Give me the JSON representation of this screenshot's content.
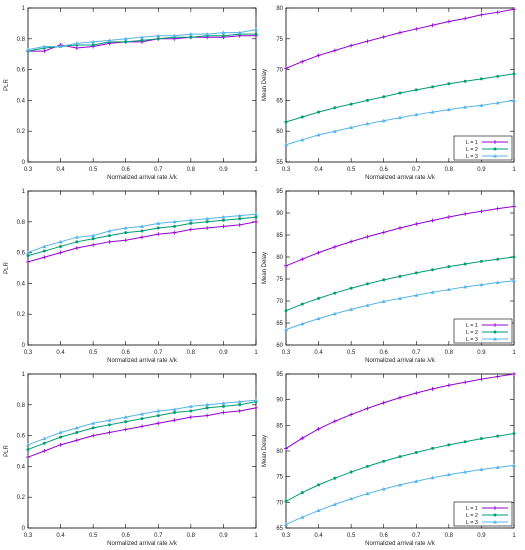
{
  "colors": {
    "series1": "#9400d3",
    "series2": "#009e73",
    "series3": "#56b4e9",
    "frame": "#000000",
    "grid": "#cccccc"
  },
  "chart_data": [
    {
      "type": "line",
      "id": "top-left-plr",
      "xlabel": "Normalized arrival rate λ/k",
      "ylabel": "PLR",
      "xlim": [
        0.3,
        1.0
      ],
      "ylim": [
        0,
        1.0
      ],
      "xticks": [
        "0.3",
        "0.4",
        "0.5",
        "0.6",
        "0.7",
        "0.8",
        "0.9",
        "1"
      ],
      "yticks": [
        "0",
        "0.2",
        "0.4",
        "0.6",
        "0.8",
        "1"
      ],
      "x": [
        0.3,
        0.35,
        0.4,
        0.45,
        0.5,
        0.55,
        0.6,
        0.65,
        0.7,
        0.75,
        0.8,
        0.85,
        0.9,
        0.95,
        1.0
      ],
      "series": [
        {
          "name": "L = 1",
          "values": [
            0.72,
            0.72,
            0.76,
            0.74,
            0.75,
            0.77,
            0.78,
            0.78,
            0.8,
            0.8,
            0.81,
            0.81,
            0.81,
            0.82,
            0.82
          ]
        },
        {
          "name": "L = 2",
          "values": [
            0.72,
            0.74,
            0.75,
            0.76,
            0.76,
            0.78,
            0.78,
            0.79,
            0.8,
            0.81,
            0.81,
            0.82,
            0.82,
            0.83,
            0.83
          ]
        },
        {
          "name": "L = 3",
          "values": [
            0.73,
            0.75,
            0.75,
            0.77,
            0.78,
            0.79,
            0.8,
            0.81,
            0.82,
            0.82,
            0.83,
            0.83,
            0.84,
            0.84,
            0.86
          ]
        }
      ]
    },
    {
      "type": "line",
      "id": "top-right-delay",
      "xlabel": "Normalized arrival rate λ/k",
      "ylabel": "Mean Delay",
      "xlim": [
        0.3,
        1.0
      ],
      "ylim": [
        55,
        80
      ],
      "xticks": [
        "0.3",
        "0.4",
        "0.5",
        "0.6",
        "0.7",
        "0.8",
        "0.9",
        "1"
      ],
      "yticks": [
        "55",
        "60",
        "65",
        "70",
        "75",
        "80"
      ],
      "legend": "bottom-right",
      "legend_labels": [
        "L = 1",
        "L = 2",
        "L = 3"
      ],
      "x": [
        0.3,
        0.35,
        0.4,
        0.45,
        0.5,
        0.55,
        0.6,
        0.65,
        0.7,
        0.75,
        0.8,
        0.85,
        0.9,
        0.95,
        1.0
      ],
      "series": [
        {
          "name": "L = 1",
          "values": [
            70.2,
            71.3,
            72.3,
            73.1,
            73.9,
            74.6,
            75.3,
            76.0,
            76.6,
            77.2,
            77.8,
            78.3,
            78.9,
            79.3,
            79.8
          ]
        },
        {
          "name": "L = 2",
          "values": [
            61.5,
            62.3,
            63.1,
            63.8,
            64.4,
            65.0,
            65.6,
            66.2,
            66.7,
            67.2,
            67.7,
            68.1,
            68.5,
            68.9,
            69.3
          ]
        },
        {
          "name": "L = 3",
          "values": [
            57.8,
            58.6,
            59.4,
            60.0,
            60.6,
            61.2,
            61.7,
            62.2,
            62.7,
            63.1,
            63.5,
            63.9,
            64.2,
            64.6,
            65.0
          ]
        }
      ]
    },
    {
      "type": "line",
      "id": "mid-left-plr",
      "xlabel": "Normalized arrival rate λ/k",
      "ylabel": "PLR",
      "xlim": [
        0.3,
        1.0
      ],
      "ylim": [
        0,
        1.0
      ],
      "xticks": [
        "0.3",
        "0.4",
        "0.5",
        "0.6",
        "0.7",
        "0.8",
        "0.9",
        "1"
      ],
      "yticks": [
        "0",
        "0.2",
        "0.4",
        "0.6",
        "0.8",
        "1"
      ],
      "x": [
        0.3,
        0.35,
        0.4,
        0.45,
        0.5,
        0.55,
        0.6,
        0.65,
        0.7,
        0.75,
        0.8,
        0.85,
        0.9,
        0.95,
        1.0
      ],
      "series": [
        {
          "name": "L = 1",
          "values": [
            0.54,
            0.57,
            0.6,
            0.63,
            0.65,
            0.67,
            0.68,
            0.7,
            0.72,
            0.73,
            0.75,
            0.76,
            0.77,
            0.78,
            0.8
          ]
        },
        {
          "name": "L = 2",
          "values": [
            0.58,
            0.61,
            0.64,
            0.67,
            0.69,
            0.71,
            0.73,
            0.74,
            0.76,
            0.77,
            0.79,
            0.8,
            0.81,
            0.82,
            0.83
          ]
        },
        {
          "name": "L = 3",
          "values": [
            0.6,
            0.64,
            0.67,
            0.7,
            0.71,
            0.74,
            0.76,
            0.77,
            0.79,
            0.8,
            0.81,
            0.82,
            0.83,
            0.84,
            0.85
          ]
        }
      ]
    },
    {
      "type": "line",
      "id": "mid-right-delay",
      "xlabel": "Normalized arrival rate λ/k",
      "ylabel": "Mean Delay",
      "xlim": [
        0.3,
        1.0
      ],
      "ylim": [
        60,
        95
      ],
      "xticks": [
        "0.3",
        "0.4",
        "0.5",
        "0.6",
        "0.7",
        "0.8",
        "0.9",
        "1"
      ],
      "yticks": [
        "60",
        "65",
        "70",
        "75",
        "80",
        "85",
        "90",
        "95"
      ],
      "legend": "bottom-right",
      "legend_labels": [
        "L = 1",
        "L = 2",
        "L = 3"
      ],
      "x": [
        0.3,
        0.35,
        0.4,
        0.45,
        0.5,
        0.55,
        0.6,
        0.65,
        0.7,
        0.75,
        0.8,
        0.85,
        0.9,
        0.95,
        1.0
      ],
      "series": [
        {
          "name": "L = 1",
          "values": [
            78.0,
            79.5,
            81.0,
            82.3,
            83.5,
            84.6,
            85.6,
            86.6,
            87.5,
            88.3,
            89.1,
            89.8,
            90.4,
            91.0,
            91.5
          ]
        },
        {
          "name": "L = 2",
          "values": [
            67.8,
            69.3,
            70.6,
            71.8,
            72.9,
            73.9,
            74.8,
            75.6,
            76.4,
            77.1,
            77.8,
            78.4,
            79.0,
            79.5,
            80.0
          ]
        },
        {
          "name": "L = 3",
          "values": [
            63.5,
            64.8,
            66.0,
            67.1,
            68.1,
            69.0,
            69.9,
            70.6,
            71.3,
            72.0,
            72.6,
            73.2,
            73.7,
            74.2,
            74.6
          ]
        }
      ]
    },
    {
      "type": "line",
      "id": "bottom-left-plr",
      "xlabel": "Normalized arrival rate λ/k",
      "ylabel": "PLR",
      "xlim": [
        0.3,
        1.0
      ],
      "ylim": [
        0,
        1.0
      ],
      "xticks": [
        "0.3",
        "0.4",
        "0.5",
        "0.6",
        "0.7",
        "0.8",
        "0.9",
        "1"
      ],
      "yticks": [
        "0",
        "0.2",
        "0.4",
        "0.6",
        "0.8",
        "1"
      ],
      "x": [
        0.3,
        0.35,
        0.4,
        0.45,
        0.5,
        0.55,
        0.6,
        0.65,
        0.7,
        0.75,
        0.8,
        0.85,
        0.9,
        0.95,
        1.0
      ],
      "series": [
        {
          "name": "L = 1",
          "values": [
            0.46,
            0.5,
            0.54,
            0.57,
            0.6,
            0.62,
            0.64,
            0.66,
            0.68,
            0.7,
            0.72,
            0.73,
            0.75,
            0.76,
            0.78
          ]
        },
        {
          "name": "L = 2",
          "values": [
            0.51,
            0.55,
            0.59,
            0.62,
            0.65,
            0.67,
            0.69,
            0.71,
            0.73,
            0.75,
            0.76,
            0.78,
            0.79,
            0.8,
            0.82
          ]
        },
        {
          "name": "L = 3",
          "values": [
            0.54,
            0.58,
            0.62,
            0.65,
            0.68,
            0.7,
            0.72,
            0.74,
            0.76,
            0.77,
            0.79,
            0.8,
            0.81,
            0.82,
            0.83
          ]
        }
      ]
    },
    {
      "type": "line",
      "id": "bottom-right-delay",
      "xlabel": "Normalized arrival rate λ/k",
      "ylabel": "Mean Delay",
      "xlim": [
        0.3,
        1.0
      ],
      "ylim": [
        65,
        95
      ],
      "xticks": [
        "0.3",
        "0.4",
        "0.5",
        "0.6",
        "0.7",
        "0.8",
        "0.9",
        "1"
      ],
      "yticks": [
        "65",
        "70",
        "75",
        "80",
        "85",
        "90",
        "95"
      ],
      "legend": "bottom-right",
      "legend_labels": [
        "L = 1",
        "L = 2",
        "L = 3"
      ],
      "x": [
        0.3,
        0.35,
        0.4,
        0.45,
        0.5,
        0.55,
        0.6,
        0.65,
        0.7,
        0.75,
        0.8,
        0.85,
        0.9,
        0.95,
        1.0
      ],
      "series": [
        {
          "name": "L = 1",
          "values": [
            80.5,
            82.5,
            84.3,
            85.8,
            87.1,
            88.3,
            89.4,
            90.4,
            91.3,
            92.1,
            92.8,
            93.4,
            94.0,
            94.5,
            95.0
          ]
        },
        {
          "name": "L = 2",
          "values": [
            70.2,
            71.9,
            73.4,
            74.7,
            75.9,
            77.0,
            78.0,
            78.9,
            79.7,
            80.5,
            81.2,
            81.8,
            82.4,
            82.9,
            83.4
          ]
        },
        {
          "name": "L = 3",
          "values": [
            65.7,
            67.1,
            68.4,
            69.6,
            70.7,
            71.7,
            72.6,
            73.4,
            74.1,
            74.8,
            75.4,
            75.9,
            76.4,
            76.8,
            77.2
          ]
        }
      ]
    }
  ]
}
